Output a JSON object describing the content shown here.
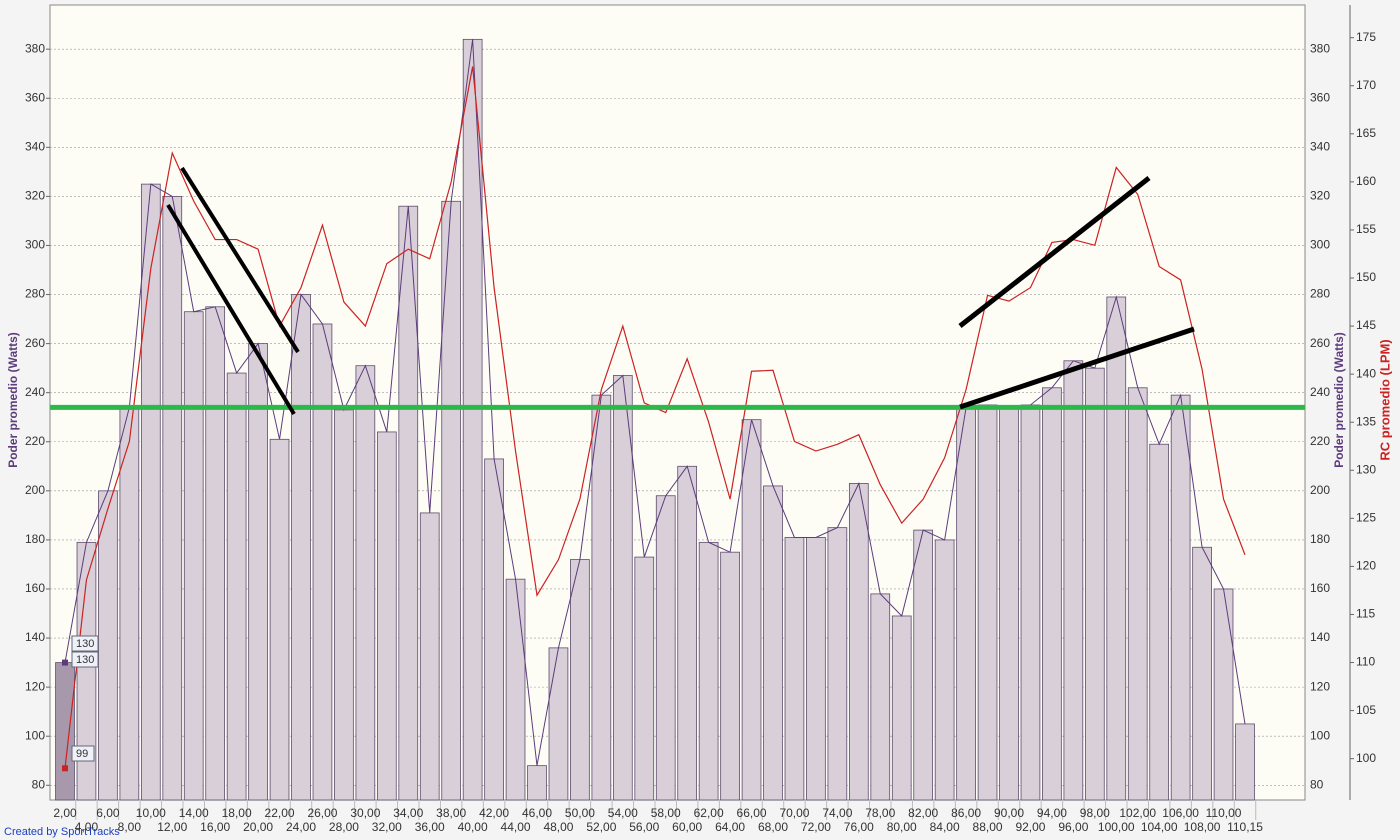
{
  "chart_data": {
    "type": "bar",
    "y_label": "Poder promedio (Watts)",
    "y2_label": "RC promedio (LPM)",
    "credit": "Created by SportTracks",
    "categories": [
      "2,00",
      "4,00",
      "6,00",
      "8,00",
      "10,00",
      "12,00",
      "14,00",
      "16,00",
      "18,00",
      "20,00",
      "22,00",
      "24,00",
      "26,00",
      "28,00",
      "30,00",
      "32,00",
      "34,00",
      "36,00",
      "38,00",
      "40,00",
      "42,00",
      "44,00",
      "46,00",
      "48,00",
      "50,00",
      "52,00",
      "54,00",
      "56,00",
      "58,00",
      "60,00",
      "62,00",
      "64,00",
      "66,00",
      "68,00",
      "70,00",
      "72,00",
      "74,00",
      "76,00",
      "78,00",
      "80,00",
      "82,00",
      "84,00",
      "86,00",
      "88,00",
      "90,00",
      "92,00",
      "94,00",
      "96,00",
      "98,00",
      "100,00",
      "102,00",
      "104,00",
      "106,00",
      "108,00",
      "110,00",
      "110,15"
    ],
    "series": [
      {
        "type": "bar",
        "color": "#d9cfd9",
        "line_color": "#5c3c7c",
        "values": [
          130,
          179,
          200,
          234,
          325,
          320,
          273,
          275,
          248,
          260,
          221,
          280,
          268,
          233,
          251,
          224,
          316,
          191,
          318,
          384,
          213,
          164,
          88,
          136,
          172,
          239,
          247,
          173,
          198,
          210,
          179,
          175,
          229,
          202,
          181,
          181,
          185,
          203,
          158,
          149,
          184,
          180,
          234,
          235,
          234,
          235,
          242,
          253,
          250,
          279,
          242,
          219,
          239,
          177,
          160,
          105
        ]
      },
      {
        "type": "line",
        "axis": "y2",
        "color": "#cc2222",
        "values": [
          99,
          118.6,
          126,
          133,
          151,
          163,
          158,
          154,
          154,
          153,
          145,
          149,
          155.5,
          147.5,
          145,
          151.5,
          153,
          152,
          160,
          172,
          149,
          132,
          117,
          120.7,
          127,
          138.4,
          145,
          137,
          136,
          141.6,
          135,
          127,
          140.3,
          140.4,
          133,
          132,
          132.7,
          133.7,
          128.5,
          124.5,
          127,
          131.3,
          138.4,
          148.2,
          147.6,
          149,
          153.7,
          154,
          153.4,
          161.5,
          158.7,
          151.2,
          149.8,
          140.5,
          127,
          121.2
        ]
      }
    ],
    "reference_line": {
      "value": 234,
      "color": "#2db84a"
    },
    "ylim": [
      74,
      398
    ],
    "yticks": [
      80,
      100,
      120,
      140,
      160,
      180,
      200,
      220,
      240,
      260,
      280,
      300,
      320,
      340,
      360,
      380
    ],
    "y2lim": [
      95.7,
      178.4
    ],
    "y2ticks": [
      100,
      105,
      110,
      115,
      120,
      125,
      130,
      135,
      140,
      145,
      150,
      155,
      160,
      165,
      170,
      175
    ],
    "grid": true
  }
}
